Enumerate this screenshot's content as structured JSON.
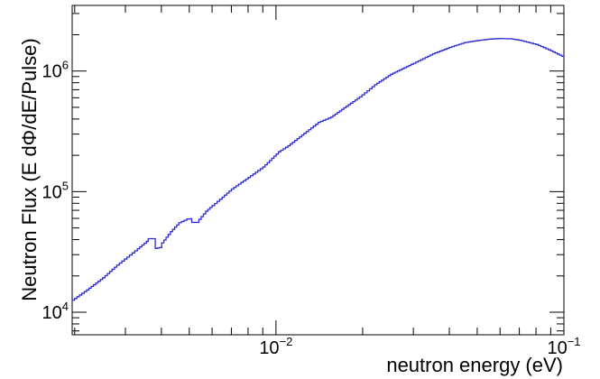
{
  "chart_data": {
    "type": "line",
    "title": "",
    "xlabel": "neutron energy (eV)",
    "ylabel": "Neutron Flux (E dΦ/dE/Pulse)",
    "xscale": "log",
    "yscale": "log",
    "xlim": [
      0.00196,
      0.1
    ],
    "ylim": [
      6500,
      3500000
    ],
    "grid": false,
    "legend": "none",
    "x_ticks": [
      {
        "value": 0.01,
        "base": "10",
        "exp": "−2"
      },
      {
        "value": 0.1,
        "base": "10",
        "exp": "−1"
      }
    ],
    "y_ticks": [
      {
        "value": 10000,
        "base": "10",
        "exp": "4"
      },
      {
        "value": 100000,
        "base": "10",
        "exp": "5"
      },
      {
        "value": 1000000,
        "base": "10",
        "exp": "6"
      }
    ],
    "series": [
      {
        "color": "#2b2bd8",
        "style": "step",
        "points": [
          [
            0.00196,
            12600
          ],
          [
            0.0022,
            15300
          ],
          [
            0.0025,
            19300
          ],
          [
            0.0028,
            24600
          ],
          [
            0.0031,
            29800
          ],
          [
            0.0033,
            33600
          ],
          [
            0.00355,
            38700
          ],
          [
            0.0036,
            40700
          ],
          [
            0.0038,
            40700
          ],
          [
            0.00381,
            33800
          ],
          [
            0.004,
            34600
          ],
          [
            0.00401,
            37600
          ],
          [
            0.0043,
            46600
          ],
          [
            0.0046,
            55300
          ],
          [
            0.0049,
            59200
          ],
          [
            0.00505,
            59600
          ],
          [
            0.0051,
            55600
          ],
          [
            0.0053,
            55600
          ],
          [
            0.0054,
            58900
          ],
          [
            0.0057,
            68800
          ],
          [
            0.006,
            76600
          ],
          [
            0.0065,
            90000
          ],
          [
            0.007,
            105000
          ],
          [
            0.008,
            131000
          ],
          [
            0.009,
            160000
          ],
          [
            0.0102,
            214000
          ],
          [
            0.011,
            240000
          ],
          [
            0.0125,
            304000
          ],
          [
            0.014,
            375000
          ],
          [
            0.0155,
            415000
          ],
          [
            0.0172,
            495000
          ],
          [
            0.0195,
            610000
          ],
          [
            0.022,
            770000
          ],
          [
            0.025,
            940000
          ],
          [
            0.03,
            1160000
          ],
          [
            0.035,
            1390000
          ],
          [
            0.04,
            1570000
          ],
          [
            0.045,
            1720000
          ],
          [
            0.05,
            1790000
          ],
          [
            0.055,
            1840000
          ],
          [
            0.06,
            1860000
          ],
          [
            0.065,
            1850000
          ],
          [
            0.07,
            1800000
          ],
          [
            0.08,
            1660000
          ],
          [
            0.09,
            1470000
          ],
          [
            0.1,
            1300000
          ]
        ]
      }
    ]
  }
}
